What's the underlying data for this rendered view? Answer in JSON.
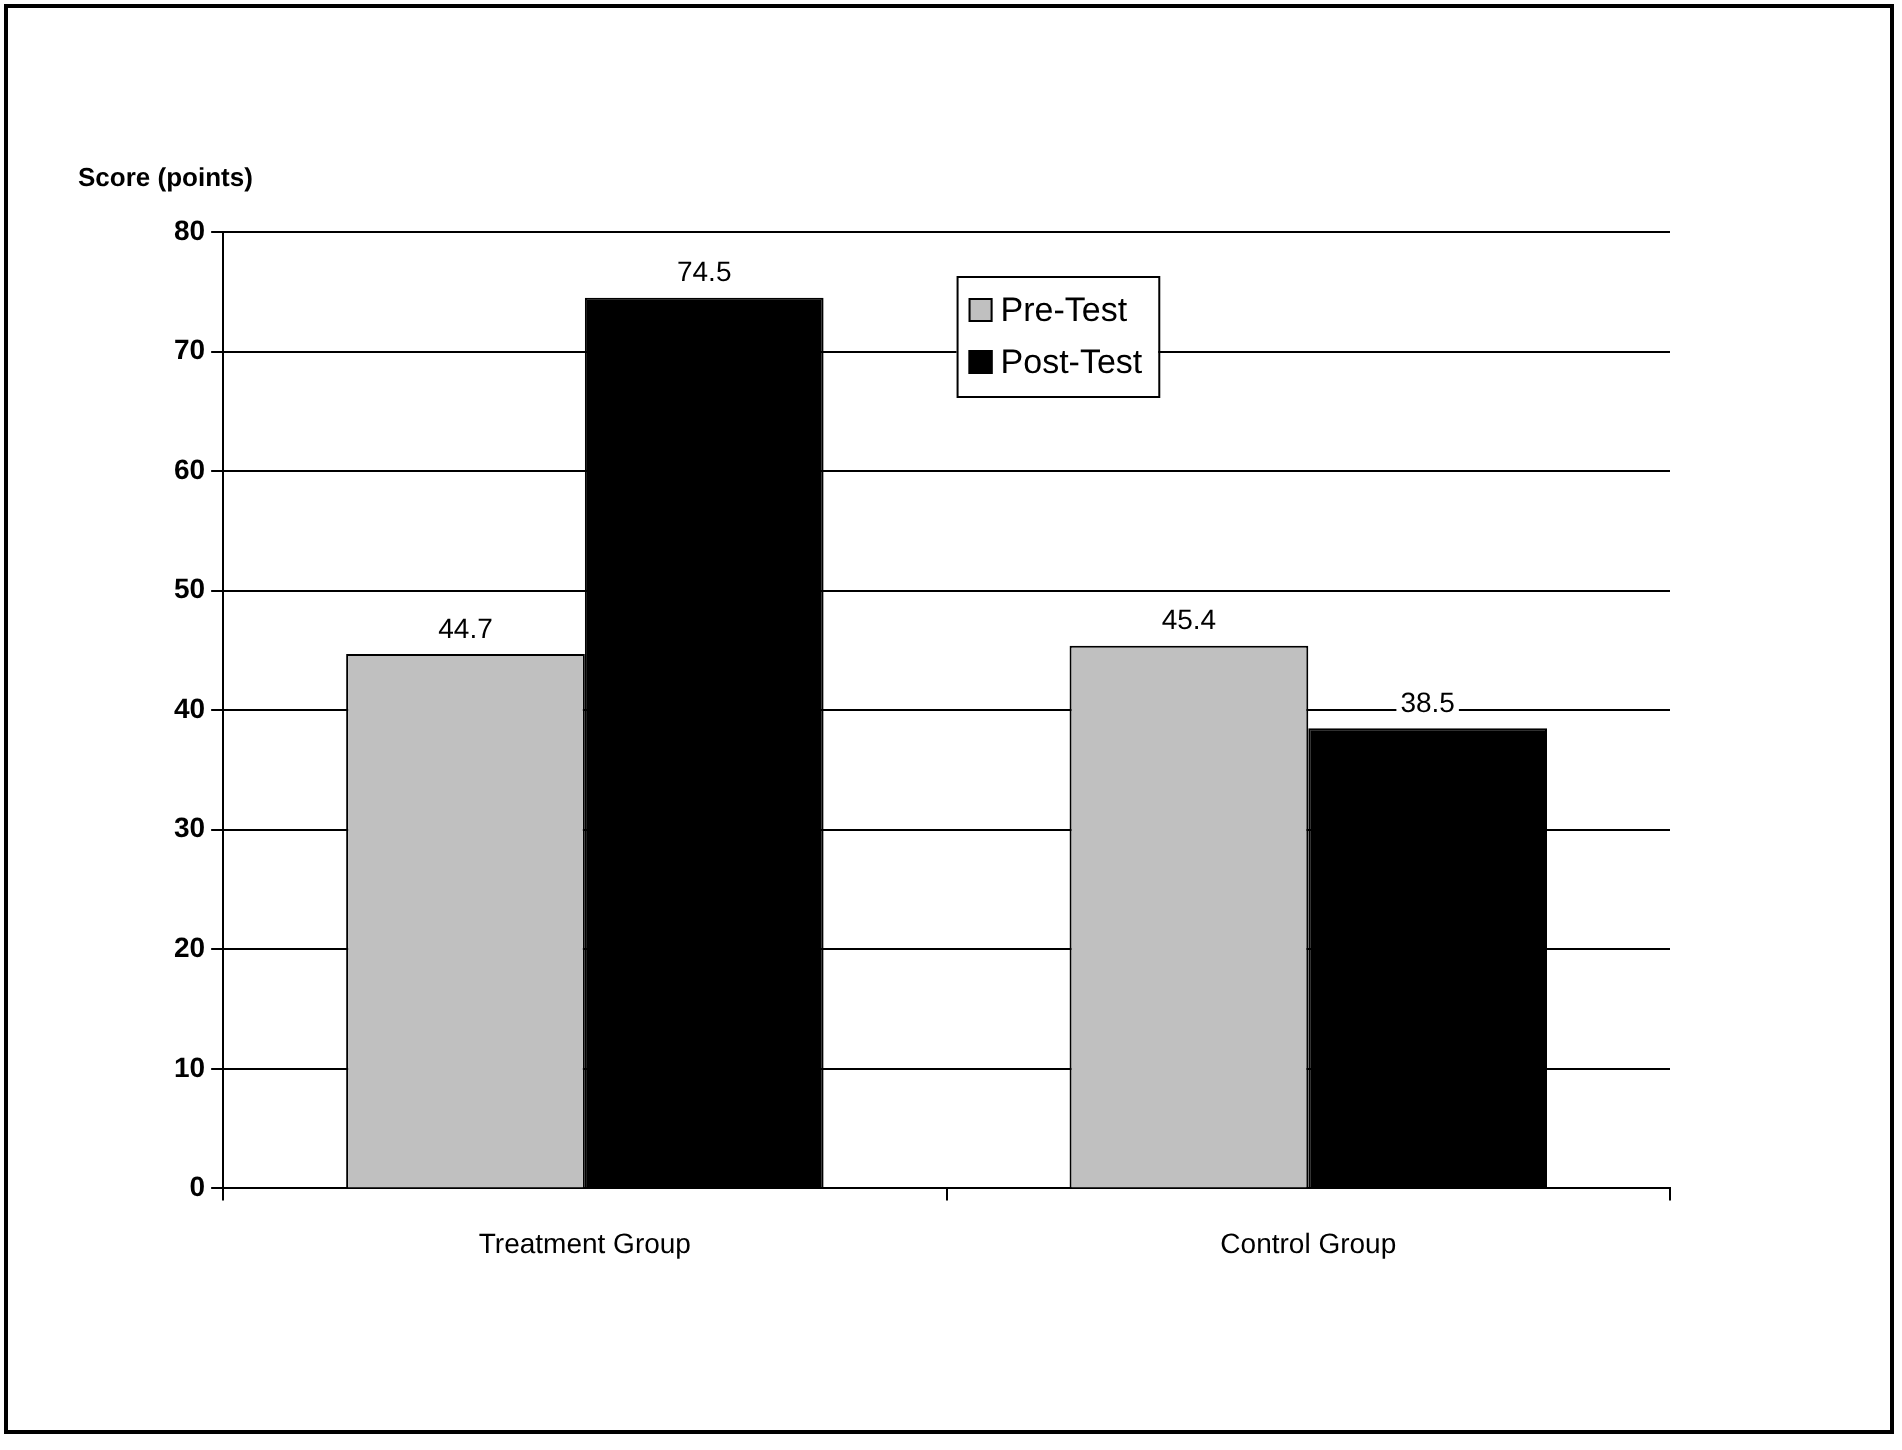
{
  "chart_data": {
    "type": "bar",
    "ylabel": "Score (points)",
    "categories": [
      "Treatment Group",
      "Control Group"
    ],
    "series": [
      {
        "name": "Pre-Test",
        "color": "#c0c0c0",
        "values": [
          44.7,
          45.4
        ]
      },
      {
        "name": "Post-Test",
        "color": "#000000",
        "values": [
          74.5,
          38.5
        ]
      }
    ],
    "ylim": [
      0,
      80
    ],
    "yticks": [
      0,
      10,
      20,
      30,
      40,
      50,
      60,
      70,
      80
    ],
    "grid": "y",
    "legend": "top",
    "data_labels": true
  }
}
